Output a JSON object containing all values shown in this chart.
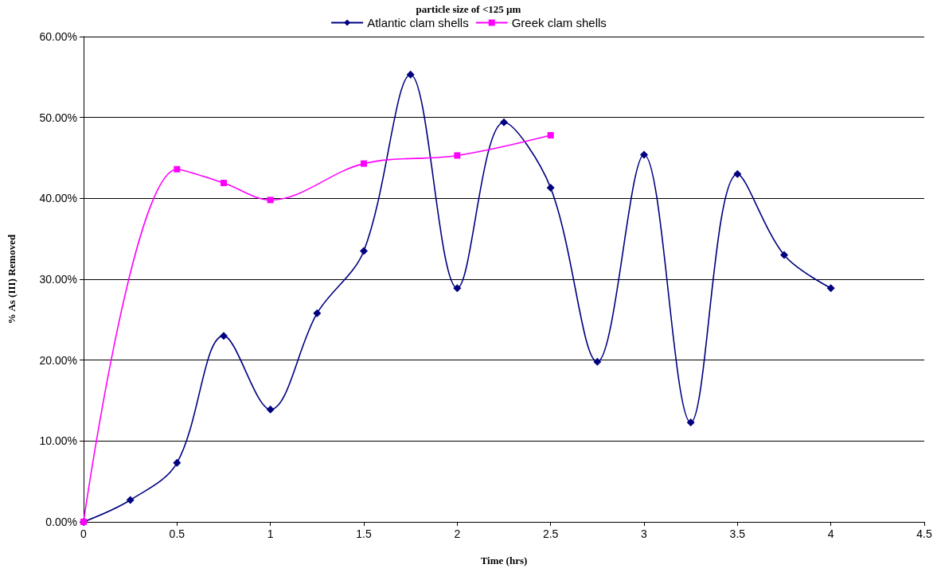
{
  "chart_data": {
    "type": "line",
    "title": "particle size of <125 µm",
    "xlabel": "Time (hrs)",
    "ylabel": "% As (III) Removed",
    "series": [
      {
        "name": "Atlantic clam shells",
        "color": "#000080",
        "marker": "diamond",
        "x": [
          0,
          0.25,
          0.5,
          0.75,
          1,
          1.25,
          1.5,
          1.75,
          2,
          2.25,
          2.5,
          2.75,
          3,
          3.25,
          3.5,
          3.75,
          4
        ],
        "values": [
          0,
          2.7,
          7.3,
          23.0,
          13.9,
          25.8,
          33.5,
          55.3,
          28.9,
          49.4,
          41.3,
          19.8,
          45.4,
          12.3,
          43.0,
          33.0,
          28.9
        ]
      },
      {
        "name": "Greek clam shells",
        "color": "#ff00ff",
        "marker": "square",
        "x": [
          0,
          0.5,
          0.75,
          1,
          1.5,
          2,
          2.5
        ],
        "values": [
          0,
          43.6,
          41.9,
          39.8,
          44.3,
          45.3,
          47.8
        ]
      }
    ],
    "xlim": [
      0,
      4.5
    ],
    "xticks": [
      0,
      0.5,
      1,
      1.5,
      2,
      2.5,
      3,
      3.5,
      4,
      4.5
    ],
    "ylim": [
      0,
      60
    ],
    "yticks": [
      {
        "value": 0,
        "label": "0.00%"
      },
      {
        "value": 10,
        "label": "10.00%"
      },
      {
        "value": 20,
        "label": "20.00%"
      },
      {
        "value": 30,
        "label": "30.00%"
      },
      {
        "value": 40,
        "label": "40.00%"
      },
      {
        "value": 50,
        "label": "50.00%"
      },
      {
        "value": 60,
        "label": "60.00%"
      }
    ],
    "grid": "y",
    "legend": "top",
    "line_style": "solid"
  }
}
